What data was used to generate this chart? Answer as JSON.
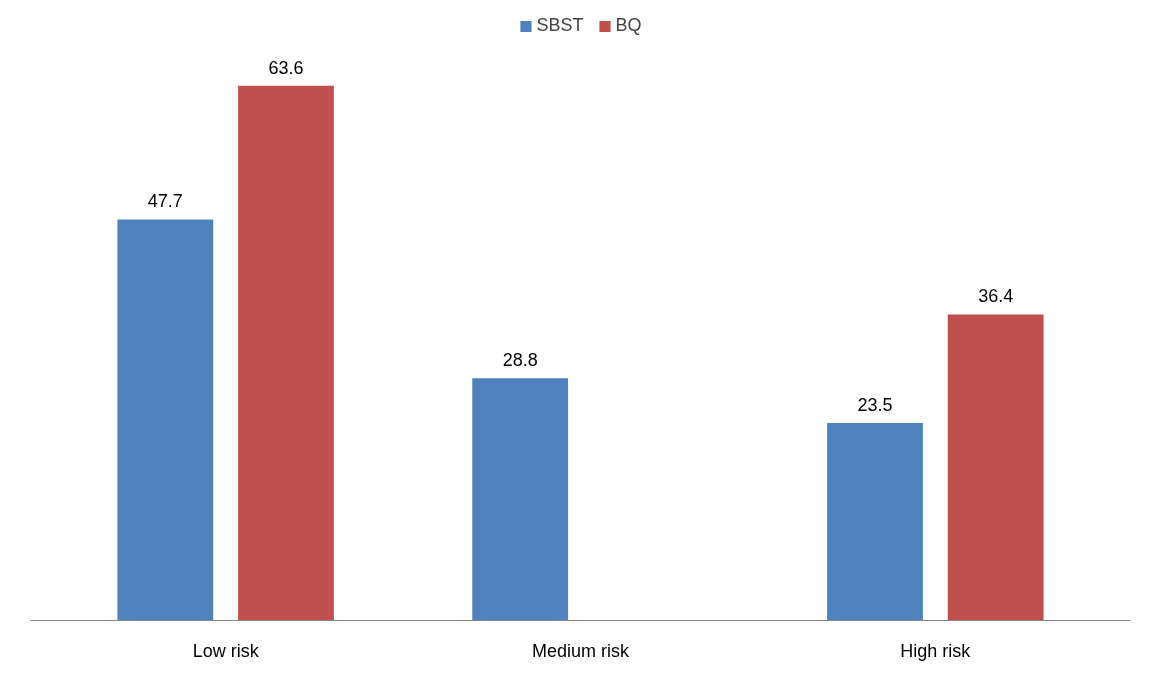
{
  "chart_data": {
    "type": "bar",
    "categories": [
      "Low risk",
      "Medium risk",
      "High risk"
    ],
    "series": [
      {
        "name": "SBST",
        "color": "#4f81bd",
        "values": [
          47.7,
          28.8,
          23.5
        ]
      },
      {
        "name": "BQ",
        "color": "#c0504d",
        "values": [
          63.6,
          null,
          36.4
        ]
      }
    ],
    "data_labels": true,
    "legend": "top",
    "tick_labels": "x",
    "grid": false
  }
}
